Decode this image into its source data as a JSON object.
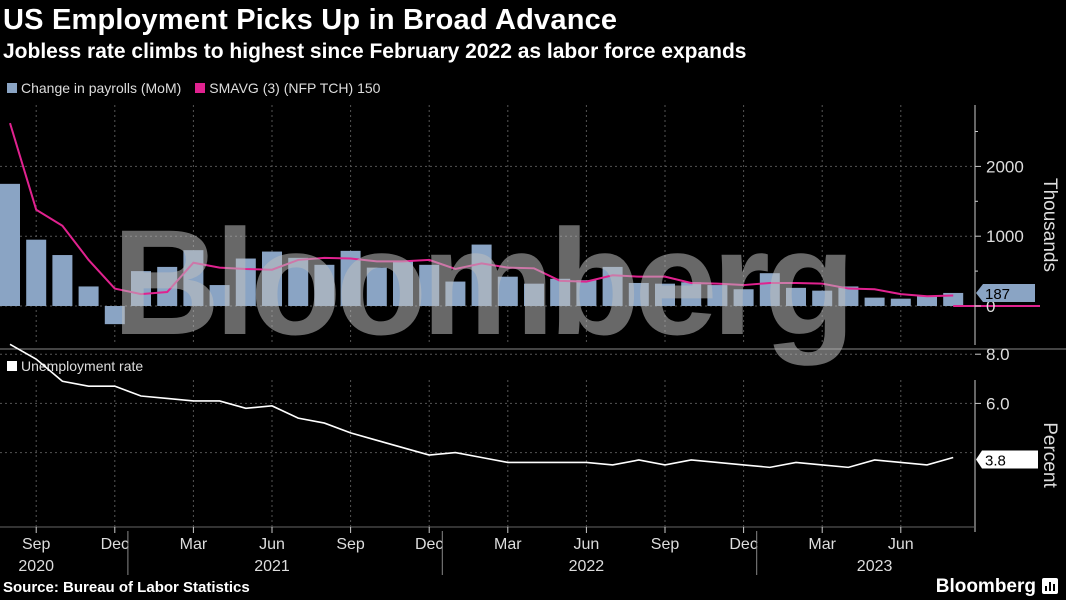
{
  "header": {
    "title": "US Employment Picks Up in Broad Advance",
    "subtitle": "Jobless rate climbs to highest since February 2022 as labor force expands"
  },
  "watermark": "Bloomberg",
  "footer": {
    "source": "Source: Bureau of Labor Statistics",
    "brand": "Bloomberg"
  },
  "colors": {
    "bars": "#8aa4c4",
    "sma": "#e0228f",
    "rate": "#ffffff",
    "background": "#000000",
    "grid": "#555555"
  },
  "chart_data": [
    {
      "type": "bar",
      "legend": [
        "Change in payrolls (MoM)",
        "SMAVG (3) (NFP TCH) 150"
      ],
      "ylabel": "Thousands",
      "yticks": [
        0,
        1000,
        2000
      ],
      "ylim": [
        -500,
        2800
      ],
      "last_value_label": "187",
      "x": [
        "2020-08",
        "2020-09",
        "2020-10",
        "2020-11",
        "2020-12",
        "2021-01",
        "2021-02",
        "2021-03",
        "2021-04",
        "2021-05",
        "2021-06",
        "2021-07",
        "2021-08",
        "2021-09",
        "2021-10",
        "2021-11",
        "2021-12",
        "2022-01",
        "2022-02",
        "2022-03",
        "2022-04",
        "2022-05",
        "2022-06",
        "2022-07",
        "2022-08",
        "2022-09",
        "2022-10",
        "2022-11",
        "2022-12",
        "2023-01",
        "2023-02",
        "2023-03",
        "2023-04",
        "2023-05",
        "2023-06",
        "2023-07",
        "2023-08"
      ],
      "series": [
        {
          "name": "Change in payrolls (MoM)",
          "kind": "bar",
          "values": [
            1750,
            950,
            730,
            280,
            -260,
            500,
            560,
            800,
            300,
            680,
            780,
            690,
            590,
            790,
            550,
            650,
            590,
            350,
            880,
            420,
            320,
            390,
            370,
            560,
            330,
            320,
            340,
            300,
            240,
            470,
            260,
            220,
            280,
            120,
            105,
            150,
            187
          ]
        },
        {
          "name": "SMAVG (3) (NFP TCH) 150",
          "kind": "line",
          "values": [
            2620,
            1380,
            1150,
            660,
            250,
            170,
            200,
            620,
            550,
            530,
            520,
            660,
            690,
            680,
            640,
            640,
            660,
            530,
            610,
            550,
            540,
            360,
            350,
            440,
            420,
            420,
            330,
            320,
            300,
            330,
            330,
            320,
            250,
            240,
            170,
            140,
            150
          ]
        }
      ]
    },
    {
      "type": "line",
      "legend": [
        "Unemployment rate"
      ],
      "ylabel": "Percent",
      "yticks": [
        "6.0",
        "8.0"
      ],
      "ylim": [
        3.0,
        9.0
      ],
      "last_value_label": "3.8",
      "x": [
        "2020-08",
        "2020-09",
        "2020-10",
        "2020-11",
        "2020-12",
        "2021-01",
        "2021-02",
        "2021-03",
        "2021-04",
        "2021-05",
        "2021-06",
        "2021-07",
        "2021-08",
        "2021-09",
        "2021-10",
        "2021-11",
        "2021-12",
        "2022-01",
        "2022-02",
        "2022-03",
        "2022-04",
        "2022-05",
        "2022-06",
        "2022-07",
        "2022-08",
        "2022-09",
        "2022-10",
        "2022-11",
        "2022-12",
        "2023-01",
        "2023-02",
        "2023-03",
        "2023-04",
        "2023-05",
        "2023-06",
        "2023-07",
        "2023-08"
      ],
      "series": [
        {
          "name": "Unemployment rate",
          "values": [
            8.4,
            7.8,
            6.9,
            6.7,
            6.7,
            6.3,
            6.2,
            6.1,
            6.1,
            5.8,
            5.9,
            5.4,
            5.2,
            4.8,
            4.5,
            4.2,
            3.9,
            4.0,
            3.8,
            3.6,
            3.6,
            3.6,
            3.6,
            3.5,
            3.7,
            3.5,
            3.7,
            3.6,
            3.5,
            3.4,
            3.6,
            3.5,
            3.4,
            3.7,
            3.6,
            3.5,
            3.8
          ]
        }
      ]
    }
  ],
  "x_axis": {
    "month_ticks": [
      {
        "label": "Sep",
        "idx": 1
      },
      {
        "label": "Dec",
        "idx": 4
      },
      {
        "label": "Mar",
        "idx": 7
      },
      {
        "label": "Jun",
        "idx": 10
      },
      {
        "label": "Sep",
        "idx": 13
      },
      {
        "label": "Dec",
        "idx": 16
      },
      {
        "label": "Mar",
        "idx": 19
      },
      {
        "label": "Jun",
        "idx": 22
      },
      {
        "label": "Sep",
        "idx": 25
      },
      {
        "label": "Dec",
        "idx": 28
      },
      {
        "label": "Mar",
        "idx": 31
      },
      {
        "label": "Jun",
        "idx": 34
      }
    ],
    "year_labels": [
      {
        "label": "2020",
        "idx": 1
      },
      {
        "label": "2021",
        "idx": 10
      },
      {
        "label": "2022",
        "idx": 22
      },
      {
        "label": "2023",
        "idx": 33
      }
    ],
    "year_separators": [
      4.5,
      16.5,
      28.5
    ]
  }
}
